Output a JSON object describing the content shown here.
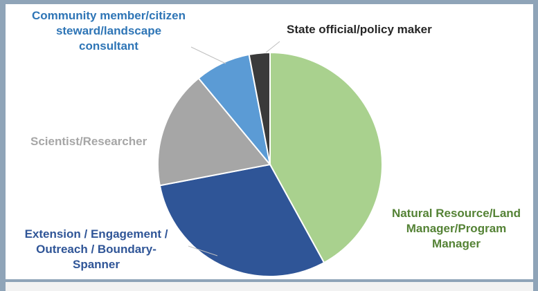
{
  "chart_data": {
    "type": "pie",
    "categories": [
      "Natural Resource/Land Manager/Program Manager",
      "Extension / Engagement / Outreach / Boundary-Spanner",
      "Scientist/Researcher",
      "Community member/citizen steward/landscape consultant",
      "State official/policy maker"
    ],
    "values": [
      42,
      30,
      17,
      8,
      3
    ],
    "colors": [
      "#a9d18e",
      "#2f5597",
      "#a6a6a6",
      "#5b9bd5",
      "#3a3a3a"
    ],
    "label_colors": [
      "#548235",
      "#2f5597",
      "#a6a6a6",
      "#2e75b6",
      "#262626"
    ],
    "labels": {
      "natural": [
        "Natural Resource/Land",
        "Manager/Program",
        "Manager"
      ],
      "extension": [
        "Extension / Engagement /",
        "Outreach / Boundary-",
        "Spanner"
      ],
      "scientist": [
        "Scientist/Researcher"
      ],
      "community": [
        "Community member/citizen",
        "steward/landscape",
        "consultant"
      ],
      "state": [
        "State official/policy maker"
      ]
    }
  }
}
